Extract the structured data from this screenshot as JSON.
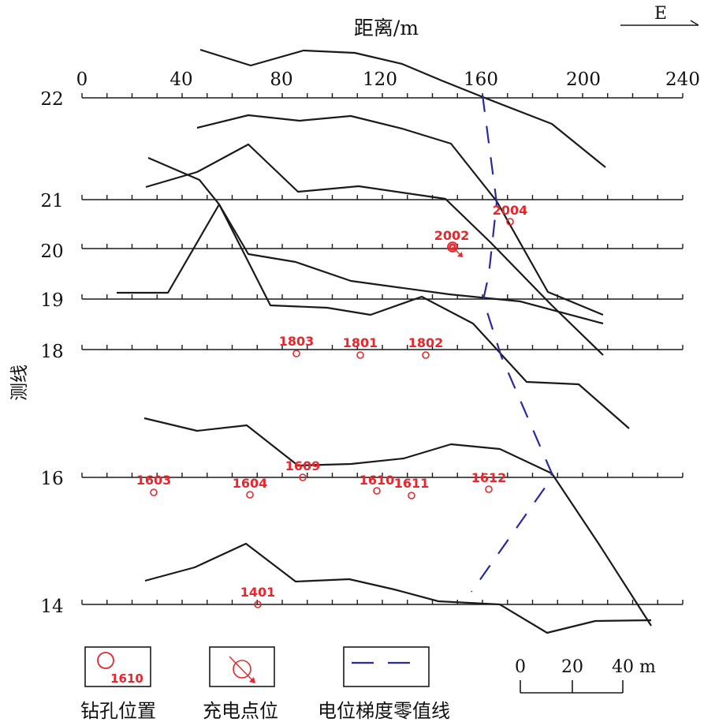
{
  "header": {
    "distance_title": "距离/m",
    "north_arrow_label": "E",
    "y_title": "测线",
    "x_ticks": [
      "0",
      "40",
      "80",
      "120",
      "160",
      "200",
      "240"
    ]
  },
  "survey_lines": [
    "22",
    "21",
    "20",
    "19",
    "18",
    "16",
    "14"
  ],
  "boreholes": [
    {
      "label": "2004",
      "line": "21"
    },
    {
      "label": "2002",
      "line": "20"
    },
    {
      "label": "1803",
      "line": "18"
    },
    {
      "label": "1801",
      "line": "18"
    },
    {
      "label": "1802",
      "line": "18"
    },
    {
      "label": "1603",
      "line": "16"
    },
    {
      "label": "1604",
      "line": "16"
    },
    {
      "label": "1609",
      "line": "16"
    },
    {
      "label": "1610",
      "line": "16"
    },
    {
      "label": "1611",
      "line": "16"
    },
    {
      "label": "1612",
      "line": "16"
    },
    {
      "label": "1401",
      "line": "14"
    }
  ],
  "legend": {
    "borehole": {
      "caption": "钻孔位置",
      "sample_label": "1610"
    },
    "charge_point": {
      "caption": "充电点位"
    },
    "zero_line": {
      "caption": "电位梯度零值线"
    }
  },
  "scale_bar": {
    "ticks": [
      "0",
      "20",
      "40 m"
    ]
  },
  "colors": {
    "curve": "#1a1a1a",
    "borehole": "#e8262c",
    "zero_line": "#2a2aa0"
  }
}
